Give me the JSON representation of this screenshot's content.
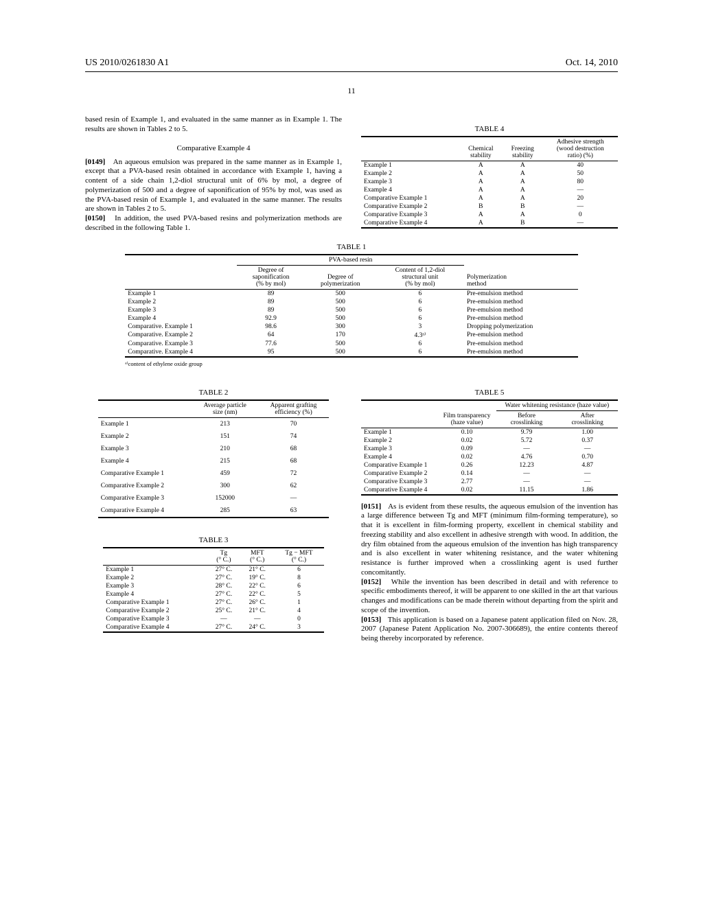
{
  "header": {
    "pub_number": "US 2010/0261830 A1",
    "pub_date": "Oct. 14, 2010",
    "page_num": "11"
  },
  "body_text": {
    "intro_fragment": "based resin of Example 1, and evaluated in the same manner as in Example 1. The results are shown in Tables 2 to 5.",
    "comp_ex4_heading": "Comparative Example 4",
    "p0149_num": "[0149]",
    "p0149": "An aqueous emulsion was prepared in the same manner as in Example 1, except that a PVA-based resin obtained in accordance with Example 1, having a content of a side chain 1,2-diol structural unit of 6% by mol, a degree of polymerization of 500 and a degree of saponification of 95% by mol, was used as the PVA-based resin of Example 1, and evaluated in the same manner. The results are shown in Tables 2 to 5.",
    "p0150_num": "[0150]",
    "p0150": "In addition, the used PVA-based resins and polymerization methods are described in the following Table 1.",
    "p0151_num": "[0151]",
    "p0151": "As is evident from these results, the aqueous emulsion of the invention has a large difference between Tg and MFT (minimum film-forming temperature), so that it is excellent in film-forming property, excellent in chemical stability and freezing stability and also excellent in adhesive strength with wood. In addition, the dry film obtained from the aqueous emulsion of the invention has high transparency and is also excellent in water whitening resistance, and the water whitening resistance is further improved when a crosslinking agent is used further concomitantly.",
    "p0152_num": "[0152]",
    "p0152": "While the invention has been described in detail and with reference to specific embodiments thereof, it will be apparent to one skilled in the art that various changes and modifications can be made therein without departing from the spirit and scope of the invention.",
    "p0153_num": "[0153]",
    "p0153": "This application is based on a Japanese patent application filed on Nov. 28, 2007 (Japanese Patent Application No. 2007-306689), the entire contents thereof being thereby incorporated by reference."
  },
  "table1": {
    "caption": "TABLE 1",
    "group_header": "PVA-based resin",
    "headers": {
      "sapon": [
        "Degree of",
        "saponification",
        "(% by mol)"
      ],
      "polym": [
        "Degree of",
        "polymerization"
      ],
      "content": [
        "Content of 1,2-diol",
        "structural unit",
        "(% by mol)"
      ],
      "method": [
        "Polymerization",
        "method"
      ]
    },
    "rows": [
      {
        "label": "Example 1",
        "sapon": "89",
        "polym": "500",
        "content": "6",
        "method": "Pre-emulsion method"
      },
      {
        "label": "Example 2",
        "sapon": "89",
        "polym": "500",
        "content": "6",
        "method": "Pre-emulsion method"
      },
      {
        "label": "Example 3",
        "sapon": "89",
        "polym": "500",
        "content": "6",
        "method": "Pre-emulsion method"
      },
      {
        "label": "Example 4",
        "sapon": "92.9",
        "polym": "500",
        "content": "6",
        "method": "Pre-emulsion method"
      },
      {
        "label": "Comparative. Example 1",
        "sapon": "98.6",
        "polym": "300",
        "content": "3",
        "method": "Dropping polymerization"
      },
      {
        "label": "Comparative. Example 2",
        "sapon": "64",
        "polym": "170",
        "content": "4.3ᵃ⁾",
        "method": "Pre-emulsion method"
      },
      {
        "label": "Comparative. Example 3",
        "sapon": "77.6",
        "polym": "500",
        "content": "6",
        "method": "Pre-emulsion method"
      },
      {
        "label": "Comparative. Example 4",
        "sapon": "95",
        "polym": "500",
        "content": "6",
        "method": "Pre-emulsion method"
      }
    ],
    "footnote": "ᵃ⁾content of ethylene oxide group"
  },
  "table2": {
    "caption": "TABLE 2",
    "headers": {
      "size": [
        "Average particle",
        "size (nm)"
      ],
      "eff": [
        "Apparent grafting",
        "efficiency (%)"
      ]
    },
    "rows": [
      {
        "label": "Example 1",
        "size": "213",
        "eff": "70"
      },
      {
        "label": "Example 2",
        "size": "151",
        "eff": "74"
      },
      {
        "label": "Example 3",
        "size": "210",
        "eff": "68"
      },
      {
        "label": "Example 4",
        "size": "215",
        "eff": "68"
      },
      {
        "label": "Comparative Example 1",
        "size": "459",
        "eff": "72"
      },
      {
        "label": "Comparative Example 2",
        "size": "300",
        "eff": "62"
      },
      {
        "label": "Comparative Example 3",
        "size": "152000",
        "eff": "—"
      },
      {
        "label": "Comparative Example 4",
        "size": "285",
        "eff": "63"
      }
    ]
  },
  "table3": {
    "caption": "TABLE 3",
    "headers": {
      "tg": [
        "Tg",
        "(° C.)"
      ],
      "mft": [
        "MFT",
        "(° C.)"
      ],
      "diff": [
        "Tg − MFT",
        "(° C.)"
      ]
    },
    "rows": [
      {
        "label": "Example 1",
        "tg": "27° C.",
        "mft": "21° C.",
        "diff": "6"
      },
      {
        "label": "Example 2",
        "tg": "27° C.",
        "mft": "19° C.",
        "diff": "8"
      },
      {
        "label": "Example 3",
        "tg": "28° C.",
        "mft": "22° C.",
        "diff": "6"
      },
      {
        "label": "Example 4",
        "tg": "27° C.",
        "mft": "22° C.",
        "diff": "5"
      },
      {
        "label": "Comparative Example 1",
        "tg": "27° C.",
        "mft": "26° C.",
        "diff": "1"
      },
      {
        "label": "Comparative Example 2",
        "tg": "25° C.",
        "mft": "21° C.",
        "diff": "4"
      },
      {
        "label": "Comparative Example 3",
        "tg": "—",
        "mft": "—",
        "diff": "0"
      },
      {
        "label": "Comparative Example 4",
        "tg": "27° C.",
        "mft": "24° C.",
        "diff": "3"
      }
    ]
  },
  "table4": {
    "caption": "TABLE 4",
    "headers": {
      "chem": [
        "Chemical",
        "stability"
      ],
      "freeze": [
        "Freezing",
        "stability"
      ],
      "adh": [
        "Adhesive strength",
        "(wood destruction",
        "ratio) (%)"
      ]
    },
    "rows": [
      {
        "label": "Example 1",
        "chem": "A",
        "freeze": "A",
        "adh": "40"
      },
      {
        "label": "Example 2",
        "chem": "A",
        "freeze": "A",
        "adh": "50"
      },
      {
        "label": "Example 3",
        "chem": "A",
        "freeze": "A",
        "adh": "80"
      },
      {
        "label": "Example 4",
        "chem": "A",
        "freeze": "A",
        "adh": "—"
      },
      {
        "label": "Comparative Example 1",
        "chem": "A",
        "freeze": "A",
        "adh": "20"
      },
      {
        "label": "Comparative Example 2",
        "chem": "B",
        "freeze": "B",
        "adh": "—"
      },
      {
        "label": "Comparative Example 3",
        "chem": "A",
        "freeze": "A",
        "adh": "0"
      },
      {
        "label": "Comparative Example 4",
        "chem": "A",
        "freeze": "B",
        "adh": "—"
      }
    ]
  },
  "table5": {
    "caption": "TABLE 5",
    "group_header": "Water whitening resistance (haze value)",
    "headers": {
      "film": [
        "Film transparency",
        "(haze value)"
      ],
      "before": [
        "Before",
        "crosslinking"
      ],
      "after": [
        "After",
        "crosslinking"
      ]
    },
    "rows": [
      {
        "label": "Example 1",
        "film": "0.10",
        "before": "9.79",
        "after": "1.00"
      },
      {
        "label": "Example 2",
        "film": "0.02",
        "before": "5.72",
        "after": "0.37"
      },
      {
        "label": "Example 3",
        "film": "0.09",
        "before": "—",
        "after": "—"
      },
      {
        "label": "Example 4",
        "film": "0.02",
        "before": "4.76",
        "after": "0.70"
      },
      {
        "label": "Comparative Example 1",
        "film": "0.26",
        "before": "12.23",
        "after": "4.87"
      },
      {
        "label": "Comparative Example 2",
        "film": "0.14",
        "before": "—",
        "after": "—"
      },
      {
        "label": "Comparative Example 3",
        "film": "2.77",
        "before": "—",
        "after": "—"
      },
      {
        "label": "Comparative Example 4",
        "film": "0.02",
        "before": "11.15",
        "after": "1.86"
      }
    ]
  }
}
